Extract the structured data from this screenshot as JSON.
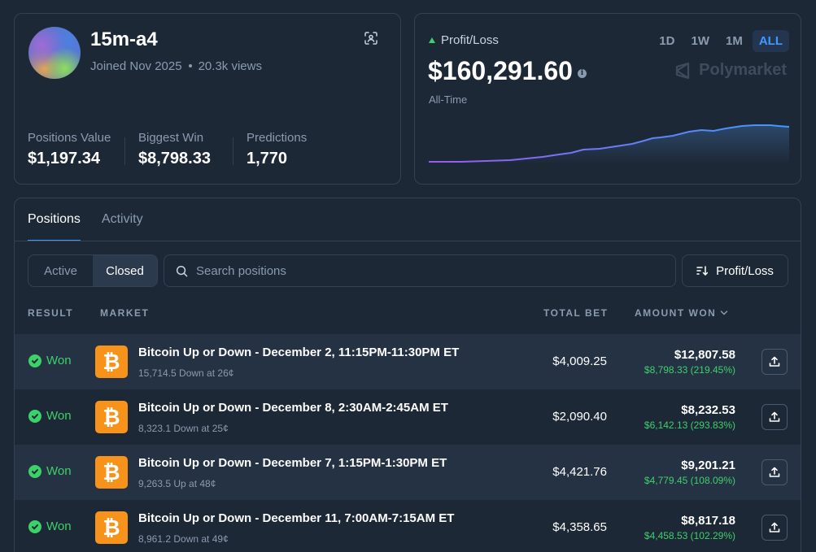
{
  "profile": {
    "username": "15m-a4",
    "joined": "Joined Nov 2025",
    "views": "20.3k views",
    "stats": [
      {
        "label": "Positions Value",
        "value": "$1,197.34"
      },
      {
        "label": "Biggest Win",
        "value": "$8,798.33"
      },
      {
        "label": "Predictions",
        "value": "1,770"
      }
    ]
  },
  "pnl": {
    "label": "Profit/Loss",
    "value": "$160,291.60",
    "period": "All-Time",
    "ranges": [
      "1D",
      "1W",
      "1M",
      "ALL"
    ],
    "active_range": "ALL",
    "brand": "Polymarket"
  },
  "positions": {
    "tabs": [
      "Positions",
      "Activity"
    ],
    "filters": [
      "Active",
      "Closed"
    ],
    "active_filter": "Closed",
    "search_placeholder": "Search positions",
    "sort_label": "Profit/Loss",
    "headers": {
      "result": "RESULT",
      "market": "MARKET",
      "total_bet": "TOTAL BET",
      "amount_won": "AMOUNT WON"
    },
    "rows": [
      {
        "result": "Won",
        "title": "Bitcoin Up or Down - December 2, 11:15PM-11:30PM ET",
        "sub": "15,714.5 Down at 26¢",
        "bet": "$4,009.25",
        "amount": "$12,807.58",
        "gain": "$8,798.33 (219.45%)"
      },
      {
        "result": "Won",
        "title": "Bitcoin Up or Down - December 8, 2:30AM-2:45AM ET",
        "sub": "8,323.1 Down at 25¢",
        "bet": "$2,090.40",
        "amount": "$8,232.53",
        "gain": "$6,142.13 (293.83%)"
      },
      {
        "result": "Won",
        "title": "Bitcoin Up or Down - December 7, 1:15PM-1:30PM ET",
        "sub": "9,263.5 Up at 48¢",
        "bet": "$4,421.76",
        "amount": "$9,201.21",
        "gain": "$4,779.45 (108.09%)"
      },
      {
        "result": "Won",
        "title": "Bitcoin Up or Down - December 11, 7:00AM-7:15AM ET",
        "sub": "8,961.2 Down at 49¢",
        "bet": "$4,358.65",
        "amount": "$8,817.18",
        "gain": "$4,458.53 (102.29%)"
      }
    ]
  },
  "colors": {
    "background": "#1d2836",
    "accent": "#3f9aff",
    "positive": "#3dd16a",
    "bitcoin": "#f7931a"
  }
}
